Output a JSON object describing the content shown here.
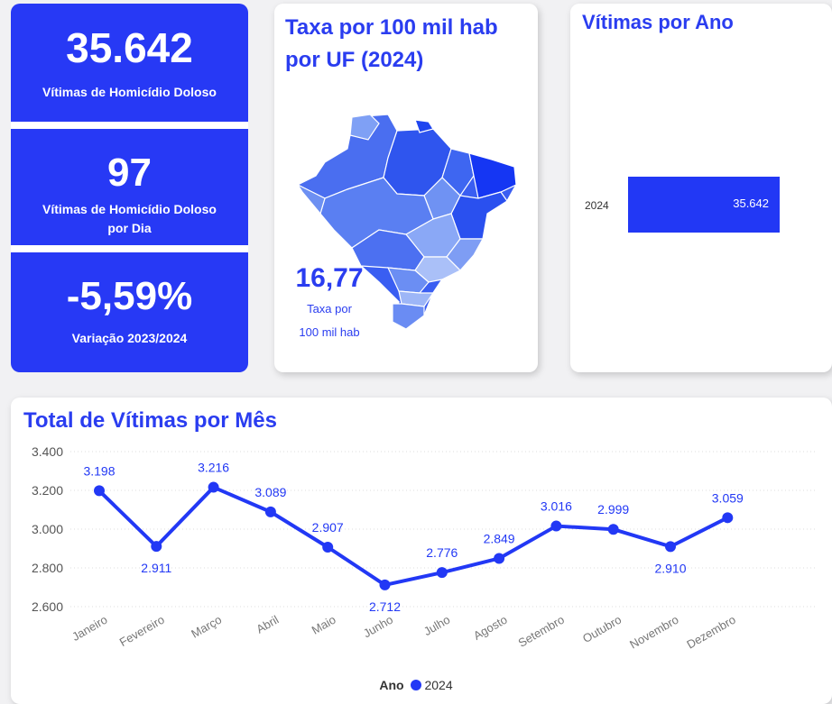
{
  "kpis": [
    {
      "value": "35.642",
      "label": "Vítimas de Homicídio Doloso"
    },
    {
      "value": "97",
      "label_line1": "Vítimas de Homicídio Doloso",
      "label_line2": "por Dia"
    },
    {
      "value": "-5,59%",
      "label": "Variação 2023/2024"
    }
  ],
  "map_card": {
    "title_line1": "Taxa por 100 mil hab",
    "title_line2": "por UF (2024)",
    "value": "16,77",
    "unit_line1": "Taxa por",
    "unit_line2": "100 mil hab"
  },
  "year_card": {
    "title": "Vítimas por Ano",
    "category": "2024",
    "value_label": "35.642",
    "value": 35642
  },
  "line_card": {
    "title": "Total de Vítimas por Mês",
    "legend_title": "Ano",
    "legend_item": "2024"
  },
  "colors": {
    "accent": "#2238f5",
    "title": "#2a3df0"
  },
  "chart_data": {
    "type": "line",
    "title": "Total de Vítimas por Mês",
    "categories": [
      "Janeiro",
      "Fevereiro",
      "Março",
      "Abril",
      "Maio",
      "Junho",
      "Julho",
      "Agosto",
      "Setembro",
      "Outubro",
      "Novembro",
      "Dezembro"
    ],
    "series": [
      {
        "name": "2024",
        "values": [
          3198,
          2911,
          3216,
          3089,
          2907,
          2712,
          2776,
          2849,
          3016,
          2999,
          2910,
          3059
        ],
        "labels": [
          "3.198",
          "2.911",
          "3.216",
          "3.089",
          "2.907",
          "2.712",
          "2.776",
          "2.849",
          "3.016",
          "2.999",
          "2.910",
          "3.059"
        ]
      }
    ],
    "yticks": [
      2600,
      2800,
      3000,
      3200,
      3400
    ],
    "ytick_labels": [
      "2.600",
      "2.800",
      "3.000",
      "3.200",
      "3.400"
    ],
    "ylim": [
      2600,
      3400
    ],
    "legend": "bottom-center",
    "grid": true
  }
}
